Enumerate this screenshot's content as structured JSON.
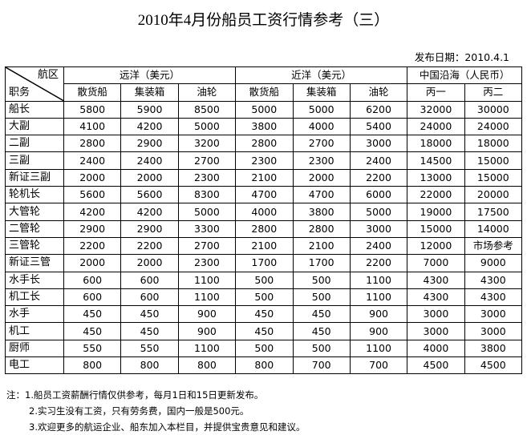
{
  "title": "2010年4月份船员工资行情参考（三）",
  "publish_date": "发布日期：2010.4.1",
  "table": {
    "corner_top": "航区",
    "corner_bottom": "职务",
    "groups": [
      "远洋（美元）",
      "近洋（美元）",
      "中国沿海（人民币）"
    ],
    "subheaders": [
      "散货船",
      "集装箱",
      "油轮",
      "散货船",
      "集装箱",
      "油轮",
      "丙一",
      "丙二"
    ],
    "rows": [
      {
        "role": "船长",
        "values": [
          "5800",
          "5900",
          "8500",
          "5000",
          "5000",
          "6200",
          "32000",
          "30000"
        ]
      },
      {
        "role": "大副",
        "values": [
          "4100",
          "4200",
          "5000",
          "3800",
          "4000",
          "5400",
          "24000",
          "24000"
        ]
      },
      {
        "role": "二副",
        "values": [
          "2800",
          "2900",
          "3200",
          "2800",
          "2700",
          "3000",
          "18000",
          "18000"
        ]
      },
      {
        "role": "三副",
        "values": [
          "2400",
          "2400",
          "2700",
          "2300",
          "2300",
          "2400",
          "14500",
          "15000"
        ]
      },
      {
        "role": "新证三副",
        "values": [
          "2000",
          "2000",
          "2300",
          "2100",
          "2000",
          "2200",
          "13000",
          "15000"
        ]
      },
      {
        "role": "轮机长",
        "values": [
          "5600",
          "5600",
          "8300",
          "4700",
          "4700",
          "6000",
          "22000",
          "20000"
        ]
      },
      {
        "role": "大管轮",
        "values": [
          "4200",
          "4200",
          "5000",
          "4000",
          "3800",
          "5000",
          "19000",
          "17500"
        ]
      },
      {
        "role": "二管轮",
        "values": [
          "2900",
          "2900",
          "3300",
          "2800",
          "2800",
          "3000",
          "15000",
          "14000"
        ]
      },
      {
        "role": "三管轮",
        "values": [
          "2200",
          "2200",
          "2700",
          "2100",
          "2100",
          "2400",
          "12000",
          "市场参考"
        ]
      },
      {
        "role": "新证三管",
        "values": [
          "2000",
          "2000",
          "2300",
          "1700",
          "1700",
          "2200",
          "7000",
          "9000"
        ]
      },
      {
        "role": "水手长",
        "values": [
          "600",
          "600",
          "1100",
          "500",
          "500",
          "1100",
          "4300",
          "4300"
        ]
      },
      {
        "role": "机工长",
        "values": [
          "600",
          "600",
          "1100",
          "500",
          "500",
          "1100",
          "4300",
          "4300"
        ]
      },
      {
        "role": "水手",
        "values": [
          "450",
          "450",
          "900",
          "450",
          "450",
          "900",
          "3000",
          "3000"
        ]
      },
      {
        "role": "机工",
        "values": [
          "450",
          "450",
          "900",
          "450",
          "450",
          "900",
          "3000",
          "3000"
        ]
      },
      {
        "role": "厨师",
        "values": [
          "550",
          "550",
          "1100",
          "500",
          "500",
          "1100",
          "4000",
          "3800"
        ]
      },
      {
        "role": "电工",
        "values": [
          "800",
          "800",
          "800",
          "800",
          "700",
          "700",
          "4500",
          "4500"
        ]
      }
    ]
  },
  "notes": [
    "注：1.船员工资薪酬行情仅供参考，每月1日和15日更新发布。",
    "2.实习生没有工资，只有劳务费，国内一般是500元。",
    "3.欢迎更多的航运企业、船东加入本栏目，并提供宝贵意见和建议。"
  ]
}
